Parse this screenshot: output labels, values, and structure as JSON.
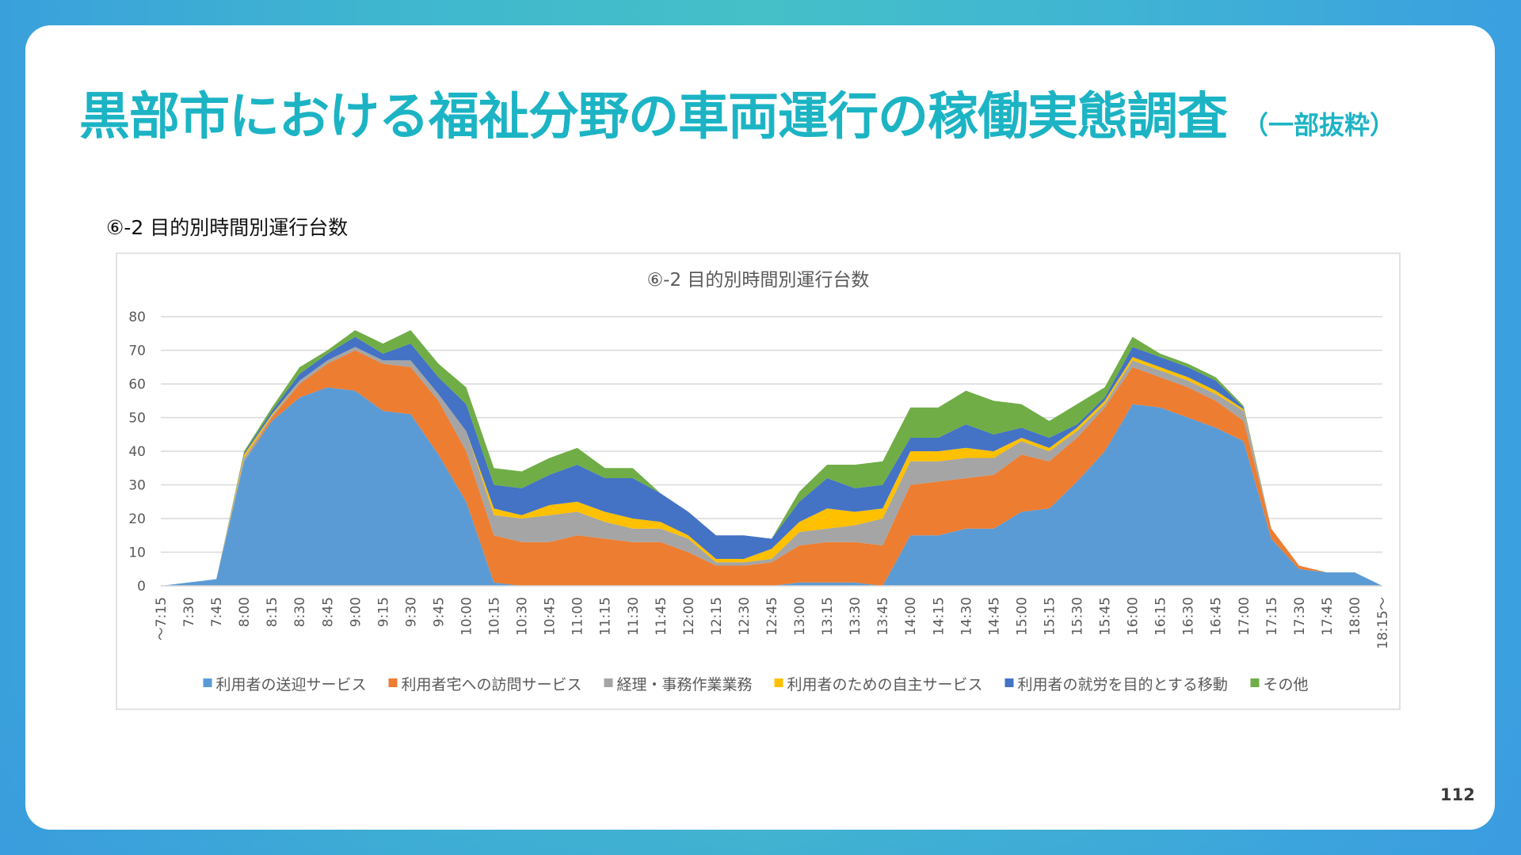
{
  "slide": {
    "title": "黒部市における福祉分野の車両運行の稼働実態調査",
    "title_suffix": "（一部抜粋）",
    "subtitle": "⑥-2 目的別時間別運行台数",
    "page_number": "112",
    "accent_color": "#1cb4c4"
  },
  "chart_data": {
    "type": "area",
    "stacked": true,
    "title": "⑥-2 目的別時間別運行台数",
    "xlabel": "",
    "ylabel": "",
    "ylim": [
      0,
      80
    ],
    "yticks": [
      0,
      10,
      20,
      30,
      40,
      50,
      60,
      70,
      80
    ],
    "grid": true,
    "legend_position": "bottom",
    "categories": [
      "～7:15",
      "7:30",
      "7:45",
      "8:00",
      "8:15",
      "8:30",
      "8:45",
      "9:00",
      "9:15",
      "9:30",
      "9:45",
      "10:00",
      "10:15",
      "10:30",
      "10:45",
      "11:00",
      "11:15",
      "11:30",
      "11:45",
      "12:00",
      "12:15",
      "12:30",
      "12:45",
      "13:00",
      "13:15",
      "13:30",
      "13:45",
      "14:00",
      "14:15",
      "14:30",
      "14:45",
      "15:00",
      "15:15",
      "15:30",
      "15:45",
      "16:00",
      "16:15",
      "16:30",
      "16:45",
      "17:00",
      "17:15",
      "17:30",
      "17:45",
      "18:00",
      "18:15～"
    ],
    "series": [
      {
        "name": "利用者の送迎サービス",
        "color": "#5b9bd5",
        "values": [
          0,
          1,
          2,
          37,
          49,
          56,
          59,
          58,
          52,
          51,
          39,
          25,
          1,
          0,
          0,
          0,
          0,
          0,
          0,
          0,
          0,
          0,
          0,
          1,
          1,
          1,
          0,
          15,
          15,
          17,
          17,
          22,
          23,
          31,
          40,
          54,
          53,
          50,
          47,
          43,
          14,
          5,
          4,
          4,
          0
        ]
      },
      {
        "name": "利用者宅への訪問サービス",
        "color": "#ed7d31",
        "values": [
          0,
          0,
          0,
          0,
          1,
          4,
          7,
          12,
          14,
          14,
          16,
          15,
          14,
          13,
          13,
          15,
          14,
          13,
          13,
          10,
          6,
          6,
          7,
          11,
          12,
          12,
          12,
          15,
          16,
          15,
          16,
          17,
          14,
          13,
          13,
          11,
          9,
          9,
          8,
          6,
          3,
          1,
          0,
          0,
          0
        ]
      },
      {
        "name": "経理・事務作業業務",
        "color": "#a5a5a5",
        "values": [
          0,
          0,
          0,
          1,
          0.5,
          1,
          1,
          1,
          1,
          2,
          2,
          6,
          6,
          7,
          8,
          7,
          5,
          4,
          4,
          4,
          1,
          1,
          1,
          4,
          4,
          5,
          8,
          7,
          6,
          6,
          5,
          4,
          3,
          2,
          1,
          2,
          2,
          2,
          2,
          3,
          0,
          0,
          0,
          0,
          0
        ]
      },
      {
        "name": "利用者のための自主サービス",
        "color": "#ffc000",
        "values": [
          0,
          0,
          0,
          1,
          0.5,
          0,
          0,
          0,
          0,
          0,
          0,
          0,
          2,
          1,
          3,
          3,
          3,
          3,
          2,
          1,
          1,
          1,
          3,
          3,
          6,
          4,
          3,
          3,
          3,
          3,
          2,
          1,
          1,
          1,
          1,
          1,
          1,
          1,
          1,
          0.5,
          0,
          0,
          0,
          0,
          0
        ]
      },
      {
        "name": "利用者の就労を目的とする移動",
        "color": "#4472c4",
        "values": [
          0,
          0,
          0,
          0.5,
          1,
          2,
          2,
          3,
          2,
          5,
          5,
          8,
          7,
          8,
          9,
          11,
          10,
          12,
          8.5,
          7,
          7,
          7,
          3,
          6,
          9,
          7,
          7,
          4,
          4,
          7,
          5,
          3,
          3,
          1,
          1,
          3,
          3,
          3,
          3,
          0.5,
          0,
          0,
          0,
          0,
          0
        ]
      },
      {
        "name": "その他",
        "color": "#70ad47",
        "values": [
          0,
          0,
          0,
          0.5,
          1,
          2,
          1,
          2,
          3,
          4,
          4,
          5,
          5,
          5,
          5,
          5,
          3,
          3,
          0,
          0,
          0,
          0,
          0,
          3,
          4,
          7,
          7,
          9,
          9,
          10,
          10,
          7,
          5,
          6,
          3,
          3,
          1,
          1,
          1,
          0.5,
          0,
          0,
          0,
          0,
          0
        ]
      }
    ]
  }
}
